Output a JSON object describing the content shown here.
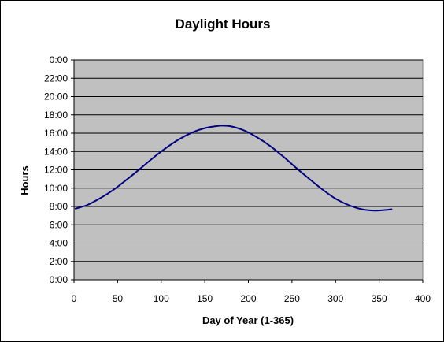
{
  "chart_data": {
    "type": "line",
    "title": "Daylight Hours",
    "xlabel": "Day of Year (1-365)",
    "ylabel": "Hours",
    "xlim": [
      0,
      400
    ],
    "ylim": [
      0,
      24
    ],
    "x_ticks": [
      0,
      50,
      100,
      150,
      200,
      250,
      300,
      350,
      400
    ],
    "x_tick_labels": [
      "0",
      "50",
      "100",
      "150",
      "200",
      "250",
      "300",
      "350",
      "400"
    ],
    "y_ticks": [
      0,
      2,
      4,
      6,
      8,
      10,
      12,
      14,
      16,
      18,
      20,
      22,
      24
    ],
    "y_tick_labels": [
      "0:00",
      "2:00",
      "4:00",
      "6:00",
      "8:00",
      "10:00",
      "12:00",
      "14:00",
      "16:00",
      "18:00",
      "20:00",
      "22:00",
      "0:00"
    ],
    "grid": "horizontal",
    "legend": "none",
    "colors": {
      "plot_background": "#c0c0c0",
      "line": "#000080",
      "gridline": "#000000"
    },
    "series": [
      {
        "x": [
          1,
          15,
          30,
          45,
          60,
          75,
          90,
          105,
          120,
          135,
          150,
          165,
          172,
          180,
          195,
          210,
          225,
          240,
          255,
          270,
          285,
          300,
          315,
          330,
          345,
          355,
          365
        ],
        "values": [
          7.75,
          8.15,
          8.9,
          9.8,
          10.9,
          12.05,
          13.25,
          14.35,
          15.3,
          16.05,
          16.55,
          16.8,
          16.82,
          16.75,
          16.3,
          15.55,
          14.6,
          13.45,
          12.2,
          11.0,
          9.85,
          8.85,
          8.15,
          7.7,
          7.55,
          7.6,
          7.7
        ]
      }
    ]
  }
}
